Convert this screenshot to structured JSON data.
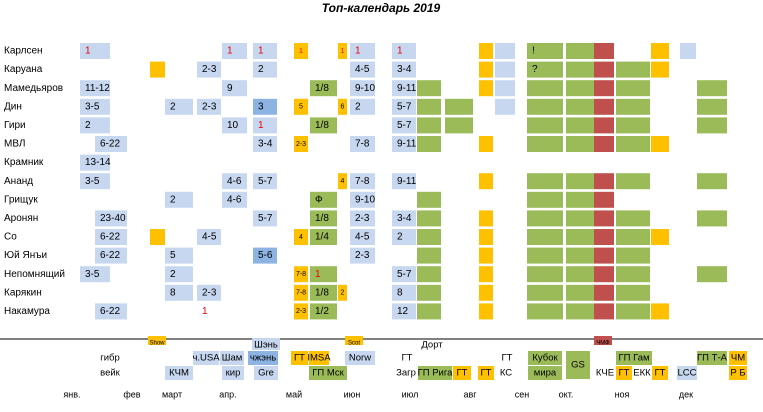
{
  "title": "Топ-календарь 2019",
  "rows": [
    {
      "name": "Карлсен",
      "texts": [
        "1",
        "1",
        "1",
        "1",
        "1",
        "1",
        "1",
        "!"
      ]
    },
    {
      "name": "Каруана",
      "texts": [
        "2-3",
        "2",
        "4-5",
        "3-4",
        "?"
      ]
    },
    {
      "name": "Мамедьяров",
      "texts": [
        "11-12",
        "9",
        "1/8",
        "9-10",
        "9-11"
      ]
    },
    {
      "name": "Дин",
      "texts": [
        "3-5",
        "2",
        "2-3",
        "3",
        "5",
        "6",
        "2",
        "5-7"
      ]
    },
    {
      "name": "Гири",
      "texts": [
        "2",
        "10",
        "1",
        "1/8",
        "5-7"
      ]
    },
    {
      "name": "МВЛ",
      "texts": [
        "6-22",
        "3-4",
        "2-3",
        "7-8",
        "9-11"
      ]
    },
    {
      "name": "Крамник",
      "texts": [
        "13-14"
      ]
    },
    {
      "name": "Ананд",
      "texts": [
        "3-5",
        "4-6",
        "5-7",
        "4",
        "7-8",
        "9-11"
      ]
    },
    {
      "name": "Грищук",
      "texts": [
        "2",
        "4-6",
        "Ф",
        "9-10"
      ]
    },
    {
      "name": "Аронян",
      "texts": [
        "23-40",
        "5-7",
        "1/8",
        "2-3",
        "3-4"
      ]
    },
    {
      "name": "Со",
      "texts": [
        "6-22",
        "4-5",
        "4",
        "1/4",
        "4-5",
        "2"
      ]
    },
    {
      "name": "Юй Янъи",
      "texts": [
        "6-22",
        "5",
        "5-6",
        "2-3"
      ]
    },
    {
      "name": "Непомнящий",
      "texts": [
        "3-5",
        "2",
        "7-8",
        "1",
        "5-7"
      ]
    },
    {
      "name": "Карякин",
      "texts": [
        "8",
        "2-3",
        "7-8",
        "1/8",
        "2",
        "8"
      ]
    },
    {
      "name": "Накамура",
      "texts": [
        "6-22",
        "1",
        "2-3",
        "1/2",
        "12"
      ]
    }
  ],
  "bottom_labels": [
    "Show",
    "Шэнь",
    "Scot",
    "Дорт",
    "ЧМФ",
    "гибр",
    "ч.USA",
    "Шам",
    "чжэнь",
    "ГТ",
    "IMSA",
    "Norw",
    "ГТ",
    "ГТ",
    "Кубок",
    "GS",
    "ГП Гам",
    "ГП Т-А",
    "ЧМ",
    "вейк",
    "КЧМ",
    "кир",
    "Gre",
    "ГП Мск",
    "Загр",
    "ГП Рига",
    "ГТ",
    "ГТ",
    "КС",
    "мира",
    "КЧЕ",
    "ГТ",
    "ЕКК",
    "ГТ",
    "LCC",
    "Р Б"
  ],
  "months": [
    "янв.",
    "фев",
    "март",
    "апр.",
    "май",
    "июн",
    "июл",
    "авг",
    "сен",
    "окт.",
    "ноя",
    "дек"
  ]
}
